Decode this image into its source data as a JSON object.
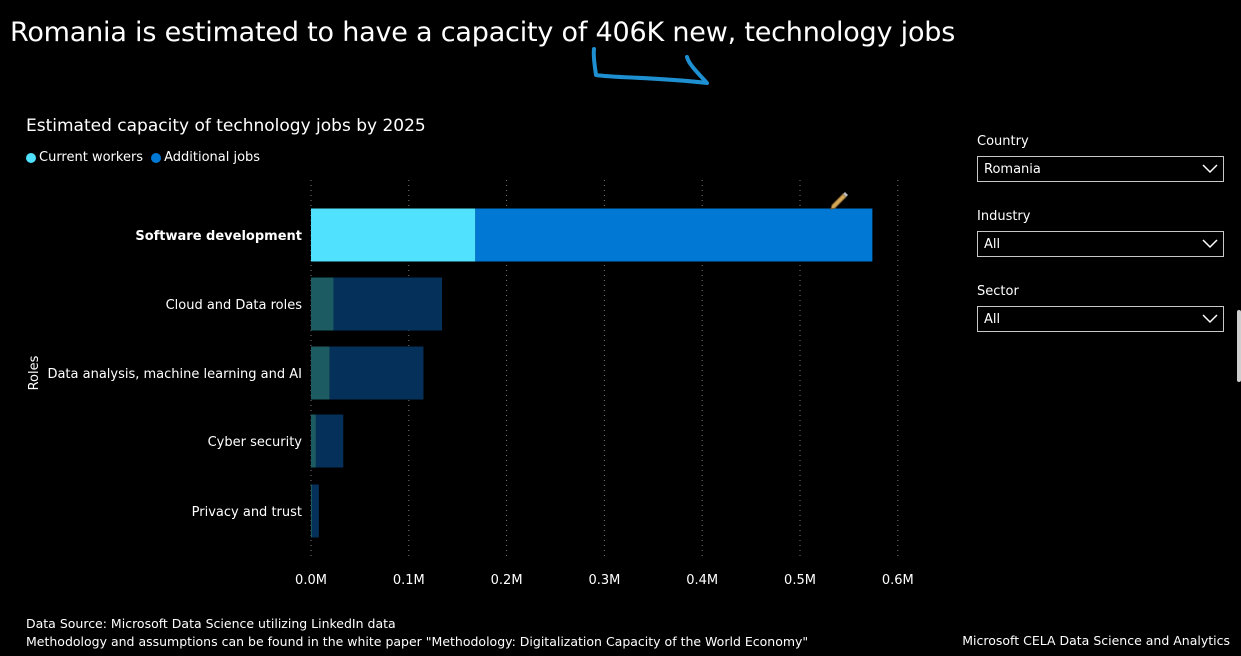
{
  "headline": "Romania is estimated to have a capacity of 406K new, technology jobs",
  "chart_data": {
    "type": "bar",
    "orientation": "horizontal",
    "stacked": true,
    "title": "Estimated capacity of technology jobs by 2025",
    "ylabel": "Roles",
    "xlabel": "",
    "categories": [
      "Software development",
      "Cloud and Data roles",
      "Data analysis, machine learning and AI",
      "Cyber security",
      "Privacy and trust"
    ],
    "highlighted_category": "Software development",
    "series": [
      {
        "name": "Current workers",
        "color": "#4fe1fd",
        "dim_color": "#1d5b63",
        "values": [
          0.168,
          0.023,
          0.019,
          0.005,
          0.001
        ]
      },
      {
        "name": "Additional jobs",
        "color": "#0078d4",
        "dim_color": "#04305a",
        "values": [
          0.406,
          0.111,
          0.096,
          0.028,
          0.007
        ]
      }
    ],
    "x_ticks": [
      0,
      0.1,
      0.2,
      0.3,
      0.4,
      0.5,
      0.6
    ],
    "x_tick_labels": [
      "0.0M",
      "0.1M",
      "0.2M",
      "0.3M",
      "0.4M",
      "0.5M",
      "0.6M"
    ],
    "xlim": [
      0,
      0.6
    ],
    "grid": true,
    "legend_position": "top-left"
  },
  "filters": [
    {
      "label": "Country",
      "value": "Romania"
    },
    {
      "label": "Industry",
      "value": "All"
    },
    {
      "label": "Sector",
      "value": "All"
    }
  ],
  "footer": {
    "source_line1": "Data Source: Microsoft Data Science utilizing LinkedIn data",
    "source_line2": "Methodology and assumptions can be found in the white paper \"Methodology: Digitalization Capacity of the World Economy\"",
    "org": "Microsoft CELA Data Science and Analytics"
  },
  "icons": {
    "edit": "pencil-icon",
    "dropdown": "chevron-down-icon"
  },
  "colors": {
    "background": "#000000",
    "annotation": "#1e8fd0"
  }
}
